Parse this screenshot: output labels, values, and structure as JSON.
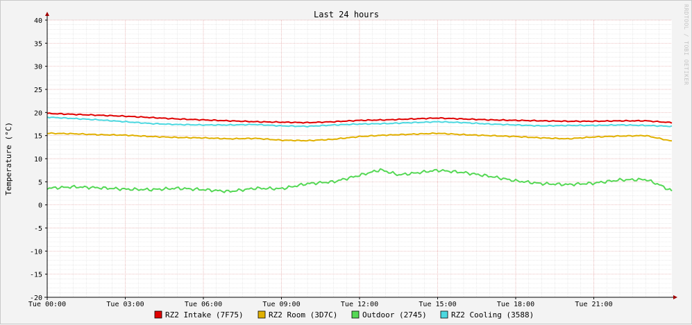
{
  "chart_data": {
    "type": "line",
    "title": "Last 24 hours",
    "ylabel": "Temperature (°C)",
    "watermark": "RRDTOOL / TOBI OETIKER",
    "ylim": [
      -20,
      40
    ],
    "xlim": [
      0,
      24
    ],
    "y_ticks": [
      40,
      35,
      30,
      25,
      20,
      15,
      10,
      5,
      0,
      -5,
      -10,
      -15,
      -20
    ],
    "x_ticks": [
      {
        "h": 0,
        "label": "Tue 00:00"
      },
      {
        "h": 3,
        "label": "Tue 03:00"
      },
      {
        "h": 6,
        "label": "Tue 06:00"
      },
      {
        "h": 9,
        "label": "Tue 09:00"
      },
      {
        "h": 12,
        "label": "Tue 12:00"
      },
      {
        "h": 15,
        "label": "Tue 15:00"
      },
      {
        "h": 18,
        "label": "Tue 18:00"
      },
      {
        "h": 21,
        "label": "Tue 21:00"
      }
    ],
    "grid": true,
    "legend_position": "bottom",
    "series": [
      {
        "name": "RZ2 Intake (7F75)",
        "color": "#e00000",
        "points": [
          [
            0,
            19.8
          ],
          [
            1,
            19.6
          ],
          [
            2,
            19.4
          ],
          [
            3,
            19.2
          ],
          [
            4,
            18.9
          ],
          [
            5,
            18.6
          ],
          [
            6,
            18.4
          ],
          [
            7,
            18.2
          ],
          [
            8,
            18.0
          ],
          [
            9,
            17.9
          ],
          [
            10,
            17.8
          ],
          [
            11,
            18.0
          ],
          [
            12,
            18.3
          ],
          [
            13,
            18.4
          ],
          [
            14,
            18.6
          ],
          [
            15,
            18.8
          ],
          [
            16,
            18.6
          ],
          [
            17,
            18.4
          ],
          [
            18,
            18.3
          ],
          [
            19,
            18.2
          ],
          [
            20,
            18.1
          ],
          [
            21,
            18.1
          ],
          [
            22,
            18.2
          ],
          [
            23,
            18.2
          ],
          [
            24,
            17.8
          ]
        ]
      },
      {
        "name": "RZ2 Room (3D7C)",
        "color": "#e0b000",
        "points": [
          [
            0,
            15.5
          ],
          [
            1,
            15.4
          ],
          [
            2,
            15.2
          ],
          [
            3,
            15.1
          ],
          [
            4,
            14.8
          ],
          [
            5,
            14.6
          ],
          [
            6,
            14.5
          ],
          [
            7,
            14.3
          ],
          [
            8,
            14.4
          ],
          [
            9,
            14.0
          ],
          [
            10,
            13.9
          ],
          [
            11,
            14.2
          ],
          [
            12,
            14.8
          ],
          [
            13,
            15.1
          ],
          [
            14,
            15.3
          ],
          [
            15,
            15.5
          ],
          [
            16,
            15.2
          ],
          [
            17,
            15.0
          ],
          [
            18,
            14.8
          ],
          [
            19,
            14.5
          ],
          [
            20,
            14.3
          ],
          [
            21,
            14.7
          ],
          [
            22,
            14.9
          ],
          [
            23,
            15.0
          ],
          [
            24,
            13.8
          ]
        ]
      },
      {
        "name": "Outdoor (2745)",
        "color": "#55d855",
        "points": [
          [
            0,
            3.6
          ],
          [
            1,
            3.9
          ],
          [
            2,
            3.7
          ],
          [
            3,
            3.4
          ],
          [
            4,
            3.3
          ],
          [
            5,
            3.6
          ],
          [
            6,
            3.3
          ],
          [
            7,
            2.9
          ],
          [
            8,
            3.6
          ],
          [
            9,
            3.5
          ],
          [
            10,
            4.6
          ],
          [
            11,
            5.0
          ],
          [
            12,
            6.4
          ],
          [
            12.8,
            7.6
          ],
          [
            13.5,
            6.5
          ],
          [
            14,
            6.8
          ],
          [
            15,
            7.5
          ],
          [
            16,
            7.0
          ],
          [
            17,
            6.2
          ],
          [
            18,
            5.2
          ],
          [
            19,
            4.6
          ],
          [
            20,
            4.4
          ],
          [
            21,
            4.7
          ],
          [
            22,
            5.4
          ],
          [
            23,
            5.5
          ],
          [
            23.5,
            4.4
          ],
          [
            24,
            3.0
          ]
        ]
      },
      {
        "name": "RZ2 Cooling (3588)",
        "color": "#4cd8e0",
        "points": [
          [
            0,
            19.0
          ],
          [
            1,
            18.7
          ],
          [
            2,
            18.4
          ],
          [
            3,
            18.0
          ],
          [
            4,
            17.6
          ],
          [
            5,
            17.4
          ],
          [
            6,
            17.3
          ],
          [
            7,
            17.3
          ],
          [
            8,
            17.4
          ],
          [
            9,
            17.1
          ],
          [
            10,
            17.0
          ],
          [
            11,
            17.3
          ],
          [
            12,
            17.5
          ],
          [
            13,
            17.6
          ],
          [
            14,
            17.8
          ],
          [
            15,
            18.0
          ],
          [
            16,
            17.8
          ],
          [
            17,
            17.5
          ],
          [
            18,
            17.3
          ],
          [
            19,
            17.1
          ],
          [
            20,
            17.2
          ],
          [
            21,
            17.2
          ],
          [
            22,
            17.3
          ],
          [
            23,
            17.2
          ],
          [
            24,
            17.0
          ]
        ]
      }
    ]
  }
}
